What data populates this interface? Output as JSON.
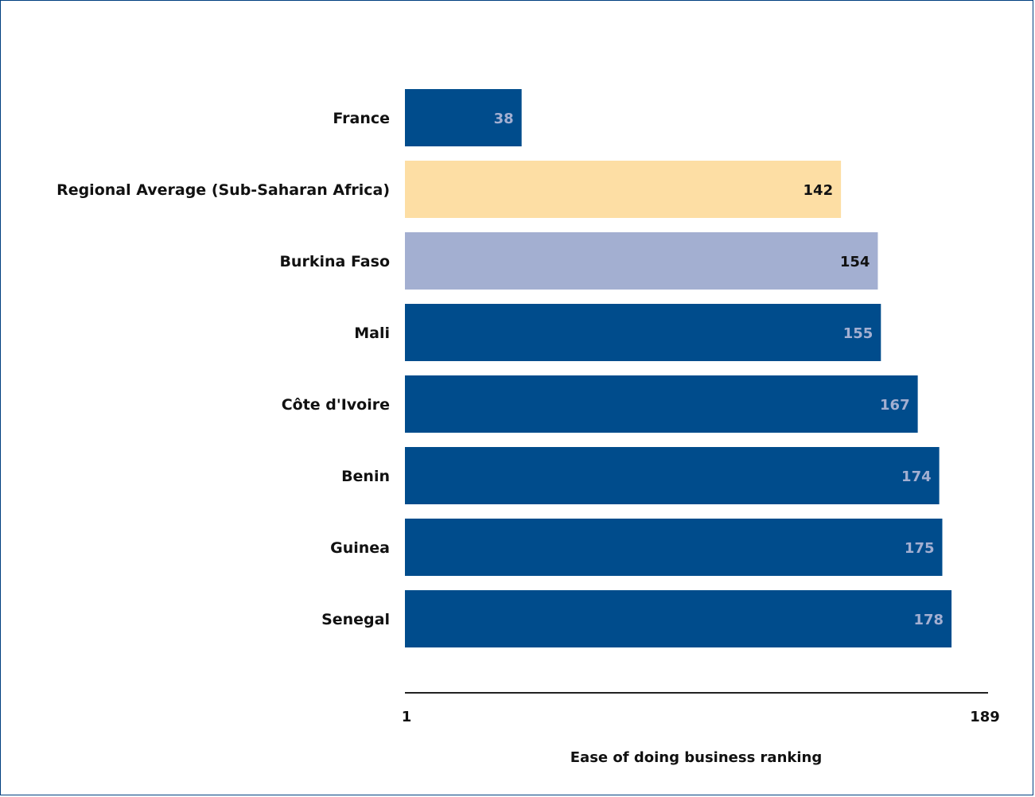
{
  "chart_data": {
    "type": "bar",
    "orientation": "horizontal",
    "categories": [
      "France",
      "Regional Average (Sub-Saharan Africa)",
      "Burkina Faso",
      "Mali",
      "Côte d'Ivoire",
      "Benin",
      "Guinea",
      "Senegal"
    ],
    "values": [
      38,
      142,
      154,
      155,
      167,
      174,
      175,
      178
    ],
    "bar_colors": [
      "#004c8c",
      "#fddea4",
      "#a3afd1",
      "#004c8c",
      "#004c8c",
      "#004c8c",
      "#004c8c",
      "#004c8c"
    ],
    "label_colors": [
      "#a3afd1",
      "#111111",
      "#111111",
      "#a3afd1",
      "#a3afd1",
      "#a3afd1",
      "#a3afd1",
      "#a3afd1"
    ],
    "xlabel": "Ease of doing business ranking",
    "xlim": [
      1,
      189
    ],
    "xticks": [
      "1",
      "189"
    ],
    "title": "",
    "grid": false,
    "legend": false
  }
}
